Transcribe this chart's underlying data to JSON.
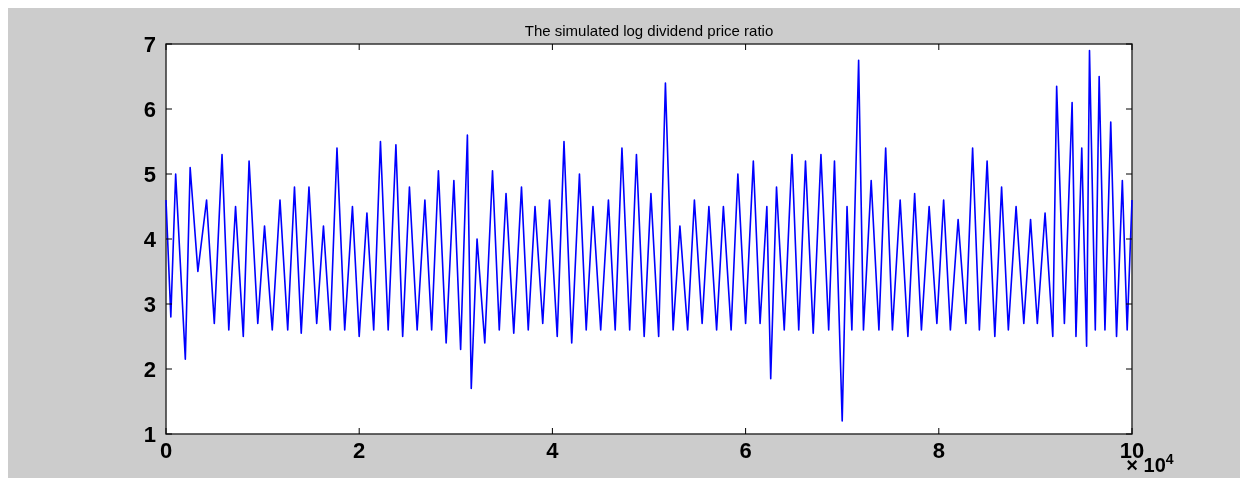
{
  "chart_data": {
    "type": "line",
    "title": "The simulated log dividend price ratio",
    "annotations": [
      "× 10$^{4}$"
    ],
    "xlim": [
      0,
      10
    ],
    "xticks": [
      0,
      2,
      4,
      6,
      8,
      10
    ],
    "ylim": [
      1,
      7
    ],
    "yticks": [
      1,
      2,
      3,
      4,
      5,
      6,
      7
    ],
    "grid": false,
    "series": [
      {
        "color": "#0000ff",
        "x": [
          0,
          0.05,
          0.1,
          0.2,
          0.25,
          0.33,
          0.42,
          0.5,
          0.58,
          0.65,
          0.72,
          0.8,
          0.86,
          0.95,
          1.02,
          1.1,
          1.18,
          1.26,
          1.33,
          1.4,
          1.48,
          1.56,
          1.63,
          1.7,
          1.77,
          1.85,
          1.93,
          2,
          2.08,
          2.15,
          2.22,
          2.3,
          2.38,
          2.45,
          2.52,
          2.6,
          2.68,
          2.75,
          2.82,
          2.9,
          2.98,
          3.05,
          3.12,
          3.16,
          3.22,
          3.3,
          3.38,
          3.45,
          3.52,
          3.6,
          3.68,
          3.75,
          3.82,
          3.9,
          3.97,
          4.05,
          4.12,
          4.2,
          4.28,
          4.35,
          4.42,
          4.5,
          4.58,
          4.65,
          4.72,
          4.8,
          4.87,
          4.95,
          5.02,
          5.1,
          5.17,
          5.25,
          5.32,
          5.4,
          5.47,
          5.55,
          5.62,
          5.7,
          5.77,
          5.85,
          5.92,
          6,
          6.08,
          6.15,
          6.22,
          6.26,
          6.32,
          6.4,
          6.48,
          6.55,
          6.62,
          6.7,
          6.78,
          6.86,
          6.92,
          7,
          7.05,
          7.1,
          7.17,
          7.22,
          7.3,
          7.38,
          7.45,
          7.52,
          7.6,
          7.68,
          7.75,
          7.82,
          7.9,
          7.98,
          8.05,
          8.12,
          8.2,
          8.28,
          8.35,
          8.42,
          8.5,
          8.58,
          8.65,
          8.72,
          8.8,
          8.88,
          8.95,
          9.02,
          9.1,
          9.18,
          9.22,
          9.3,
          9.38,
          9.42,
          9.48,
          9.53,
          9.56,
          9.62,
          9.66,
          9.72,
          9.78,
          9.84,
          9.9,
          9.95,
          10
        ],
        "values": [
          4.6,
          2.8,
          5,
          2.15,
          5.1,
          3.5,
          4.6,
          2.7,
          5.3,
          2.6,
          4.5,
          2.5,
          5.2,
          2.7,
          4.2,
          2.6,
          4.6,
          2.6,
          4.8,
          2.55,
          4.8,
          2.7,
          4.2,
          2.6,
          5.4,
          2.6,
          4.5,
          2.5,
          4.4,
          2.6,
          5.5,
          2.6,
          5.45,
          2.5,
          4.8,
          2.6,
          4.6,
          2.6,
          5.05,
          2.4,
          4.9,
          2.3,
          5.6,
          1.7,
          4,
          2.4,
          5.05,
          2.6,
          4.7,
          2.55,
          4.8,
          2.6,
          4.5,
          2.7,
          4.6,
          2.5,
          5.5,
          2.4,
          5,
          2.6,
          4.5,
          2.6,
          4.6,
          2.6,
          5.4,
          2.6,
          5.3,
          2.5,
          4.7,
          2.5,
          6.4,
          2.6,
          4.2,
          2.6,
          4.6,
          2.7,
          4.5,
          2.6,
          4.5,
          2.6,
          5,
          2.7,
          5.2,
          2.7,
          4.5,
          1.85,
          4.8,
          2.6,
          5.3,
          2.6,
          5.2,
          2.55,
          5.3,
          2.6,
          5.2,
          1.2,
          4.5,
          2.6,
          6.75,
          2.6,
          4.9,
          2.6,
          5.4,
          2.6,
          4.6,
          2.5,
          4.7,
          2.6,
          4.5,
          2.7,
          4.6,
          2.6,
          4.3,
          2.7,
          5.4,
          2.6,
          5.2,
          2.5,
          4.8,
          2.6,
          4.5,
          2.7,
          4.3,
          2.7,
          4.4,
          2.5,
          6.35,
          2.7,
          6.1,
          2.5,
          5.4,
          2.35,
          6.9,
          2.6,
          6.5,
          2.6,
          5.8,
          2.5,
          4.9,
          2.6,
          4.6
        ]
      }
    ]
  }
}
